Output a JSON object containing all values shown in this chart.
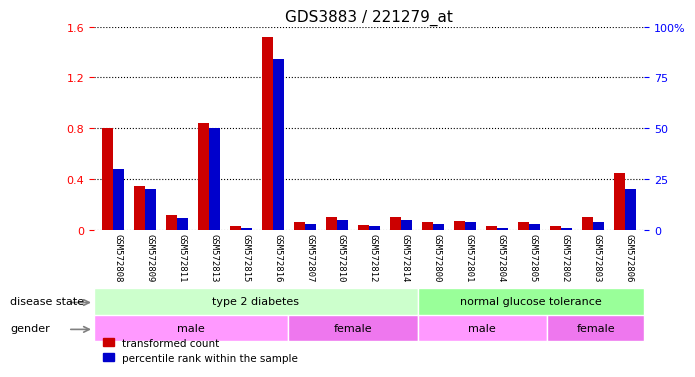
{
  "title": "GDS3883 / 221279_at",
  "samples": [
    "GSM572808",
    "GSM572809",
    "GSM572811",
    "GSM572813",
    "GSM572815",
    "GSM572816",
    "GSM572807",
    "GSM572810",
    "GSM572812",
    "GSM572814",
    "GSM572800",
    "GSM572801",
    "GSM572804",
    "GSM572805",
    "GSM572802",
    "GSM572803",
    "GSM572806"
  ],
  "transformed_count": [
    0.8,
    0.35,
    0.12,
    0.84,
    0.03,
    1.52,
    0.06,
    0.1,
    0.04,
    0.1,
    0.06,
    0.07,
    0.03,
    0.06,
    0.03,
    0.1,
    0.45
  ],
  "percentile_rank": [
    0.3,
    0.2,
    0.06,
    0.5,
    0.01,
    0.84,
    0.03,
    0.05,
    0.02,
    0.05,
    0.03,
    0.04,
    0.01,
    0.03,
    0.01,
    0.04,
    0.2
  ],
  "bar_color_red": "#cc0000",
  "bar_color_blue": "#0000cc",
  "ylim_left": [
    0,
    1.6
  ],
  "ylim_right": [
    0,
    100
  ],
  "yticks_left": [
    0,
    0.4,
    0.8,
    1.2,
    1.6
  ],
  "yticks_right": [
    0,
    25,
    50,
    75,
    100
  ],
  "ytick_labels_left": [
    "0",
    "0.4",
    "0.8",
    "1.2",
    "1.6"
  ],
  "ytick_labels_right": [
    "0",
    "25",
    "50",
    "75",
    "100%"
  ],
  "disease_state_groups": [
    {
      "label": "type 2 diabetes",
      "start": 0,
      "end": 10,
      "color": "#ccffcc"
    },
    {
      "label": "normal glucose tolerance",
      "start": 10,
      "end": 17,
      "color": "#99ff99"
    }
  ],
  "gender_groups": [
    {
      "label": "male",
      "start": 0,
      "end": 6,
      "color": "#ff99ff"
    },
    {
      "label": "female",
      "start": 6,
      "end": 10,
      "color": "#ee77ee"
    },
    {
      "label": "male",
      "start": 10,
      "end": 14,
      "color": "#ff99ff"
    },
    {
      "label": "female",
      "start": 14,
      "end": 17,
      "color": "#ee77ee"
    }
  ],
  "legend_items": [
    {
      "label": "transformed count",
      "color": "#cc0000"
    },
    {
      "label": "percentile rank within the sample",
      "color": "#0000cc"
    }
  ],
  "bar_width": 0.35,
  "background_color": "#ffffff",
  "grid_color": "#000000",
  "label_fontsize": 9,
  "tick_fontsize": 8,
  "title_fontsize": 11
}
